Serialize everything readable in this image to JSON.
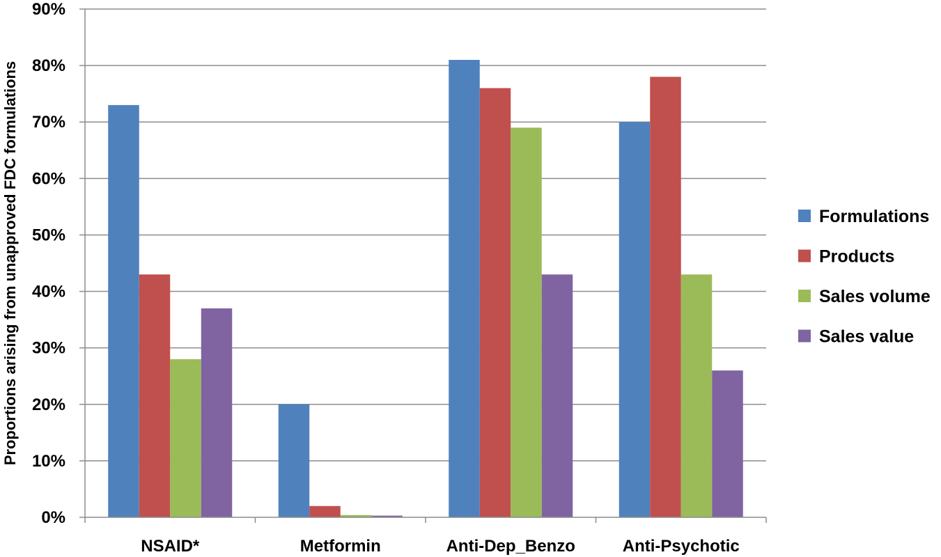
{
  "chart_data": {
    "type": "bar",
    "title": "",
    "xlabel": "",
    "ylabel": "Proportions arising from unapproved FDC formulations",
    "categories": [
      "NSAID*",
      "Metformin",
      "Anti-Dep_Benzo",
      "Anti-Psychotic"
    ],
    "series": [
      {
        "name": "Formulations",
        "color": "#4F81BD",
        "values": [
          73,
          20,
          81,
          70
        ]
      },
      {
        "name": "Products",
        "color": "#C0504D",
        "values": [
          43,
          2,
          76,
          78
        ]
      },
      {
        "name": "Sales volume",
        "color": "#9BBB59",
        "values": [
          28,
          0.4,
          69,
          43
        ]
      },
      {
        "name": "Sales value",
        "color": "#8064A2",
        "values": [
          37,
          0.3,
          43,
          26
        ]
      }
    ],
    "ylim": [
      0,
      90
    ],
    "yticks": [
      "0%",
      "10%",
      "20%",
      "30%",
      "40%",
      "50%",
      "60%",
      "70%",
      "80%",
      "90%"
    ],
    "grid": true,
    "legend_position": "right"
  }
}
